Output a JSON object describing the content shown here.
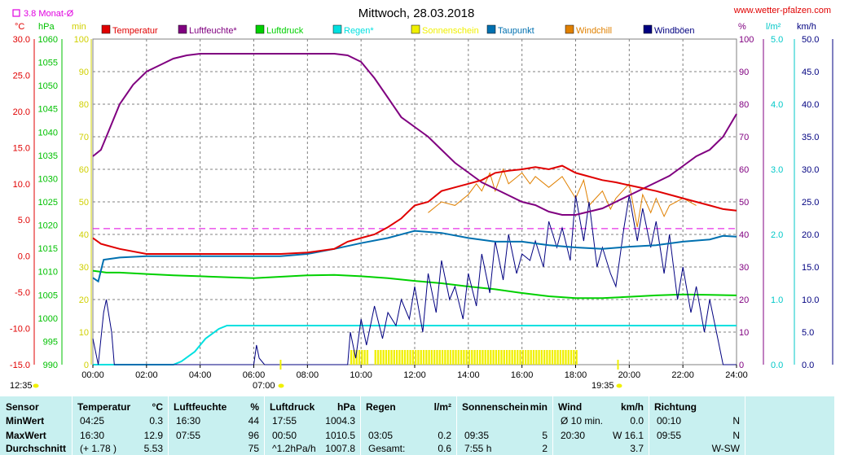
{
  "header": {
    "title": "Mittwoch, 28.03.2018",
    "site": "www.wetter-pfalzen.com",
    "avg_label": "3.8 Monat-Ø"
  },
  "axes": {
    "left_units": [
      "°C",
      "hPa",
      "min"
    ],
    "right_units": [
      "%",
      "l/m²",
      "km/h"
    ]
  },
  "legend": [
    {
      "label": "Temperatur",
      "color": "#e00000"
    },
    {
      "label": "Luftfeuchte*",
      "color": "#800080"
    },
    {
      "label": "Luftdruck",
      "color": "#00d000"
    },
    {
      "label": "Regen*",
      "color": "#00e0e0"
    },
    {
      "label": "Sonnenschein",
      "color": "#f0f000"
    },
    {
      "label": "Taupunkt",
      "color": "#0070b0"
    },
    {
      "label": "Windchill",
      "color": "#e08000"
    },
    {
      "label": "Windböen",
      "color": "#000080"
    }
  ],
  "sun": {
    "rise": "07:00",
    "set": "19:35",
    "left_time": "12:35"
  },
  "chart_data": {
    "type": "line",
    "x_ticks": [
      "00:00",
      "02:00",
      "04:00",
      "06:00",
      "08:00",
      "10:00",
      "12:00",
      "14:00",
      "16:00",
      "18:00",
      "20:00",
      "22:00",
      "24:00"
    ],
    "y_temp_ticks": [
      "30.0",
      "25.0",
      "20.0",
      "15.0",
      "10.0",
      "5.0",
      "0.0",
      "-5.0",
      "-10.0",
      "-15.0"
    ],
    "y_hpa_ticks": [
      "1060",
      "1055",
      "1050",
      "1045",
      "1040",
      "1035",
      "1030",
      "1025",
      "1020",
      "1015",
      "1010",
      "1005",
      "1000",
      "995",
      "990"
    ],
    "y_min_ticks": [
      "100",
      "90",
      "80",
      "70",
      "60",
      "50",
      "40",
      "30",
      "20",
      "10",
      "0"
    ],
    "y_pct_ticks": [
      "100",
      "90",
      "80",
      "70",
      "60",
      "50",
      "40",
      "30",
      "20",
      "10",
      "0"
    ],
    "y_rain_ticks": [
      "5.0",
      "4.0",
      "3.0",
      "2.0",
      "1.0",
      "0.0"
    ],
    "y_wind_ticks": [
      "50.0",
      "45.0",
      "40.0",
      "35.0",
      "30.0",
      "25.0",
      "20.0",
      "15.0",
      "10.0",
      "5.0",
      "0.0"
    ],
    "monthly_avg_temp": 3.8,
    "series": [
      {
        "name": "Temperatur",
        "unit": "°C",
        "x": [
          0,
          0.3,
          1,
          2,
          3,
          4,
          5,
          6,
          7,
          8,
          9,
          9.5,
          10,
          10.5,
          11,
          11.5,
          12,
          12.5,
          13,
          13.5,
          14,
          14.5,
          15,
          15.5,
          16,
          16.5,
          17,
          17.5,
          18,
          18.5,
          19,
          19.5,
          20,
          20.5,
          21,
          21.5,
          22,
          22.5,
          23,
          23.5,
          24
        ],
        "y": [
          2.5,
          1.7,
          1.0,
          0.3,
          0.3,
          0.3,
          0.3,
          0.3,
          0.3,
          0.5,
          1.0,
          2.0,
          2.5,
          3.0,
          4.0,
          5.2,
          7.0,
          7.5,
          9.0,
          9.5,
          10.0,
          10.5,
          11.5,
          11.8,
          12.0,
          12.3,
          12.0,
          12.5,
          11.5,
          11.0,
          10.5,
          10.2,
          9.8,
          9.4,
          9.0,
          8.5,
          8.0,
          7.5,
          7.0,
          6.5,
          6.3
        ]
      },
      {
        "name": "Luftfeuchte*",
        "unit": "%",
        "x": [
          0,
          0.3,
          0.6,
          1,
          1.5,
          2,
          2.5,
          3,
          3.5,
          4,
          4.5,
          5,
          6,
          7,
          8,
          9,
          9.5,
          10,
          10.5,
          11,
          11.5,
          12,
          12.5,
          13,
          13.5,
          14,
          14.5,
          15,
          15.5,
          16,
          16.5,
          17,
          17.5,
          18,
          18.5,
          19,
          19.5,
          20,
          20.5,
          21,
          21.5,
          22,
          22.5,
          23,
          23.5,
          24
        ],
        "y": [
          64,
          66,
          72,
          80,
          86,
          90,
          92,
          94,
          95,
          95.5,
          95.5,
          95.5,
          95.5,
          95.5,
          95.5,
          95.5,
          95,
          93,
          88,
          82,
          76,
          73,
          70,
          66,
          62,
          59,
          56,
          54,
          52,
          50,
          49,
          47,
          46,
          46,
          47,
          48,
          50,
          52,
          54,
          56,
          58,
          61,
          64,
          66,
          70,
          77
        ]
      },
      {
        "name": "Luftdruck",
        "unit": "hPa",
        "x": [
          0,
          0.5,
          1,
          2,
          3,
          4,
          5,
          6,
          7,
          8,
          9,
          10,
          11,
          12,
          13,
          14,
          15,
          16,
          17,
          18,
          18.5,
          19,
          20,
          21,
          22,
          23,
          24
        ],
        "y": [
          1010.2,
          1009.8,
          1009.8,
          1009.5,
          1009.2,
          1009.0,
          1008.8,
          1008.6,
          1008.9,
          1009.2,
          1009.3,
          1009.0,
          1008.6,
          1008.0,
          1007.5,
          1006.8,
          1006.2,
          1005.4,
          1004.7,
          1004.3,
          1004.3,
          1004.3,
          1004.6,
          1004.9,
          1005.1,
          1005.0,
          1004.9
        ]
      },
      {
        "name": "Regen*",
        "unit": "l/m²",
        "x": [
          0,
          2,
          3,
          3.3,
          3.8,
          4.2,
          4.7,
          5,
          6,
          8,
          10,
          12,
          14,
          16,
          18,
          20,
          22,
          24
        ],
        "y": [
          0,
          0,
          0,
          0.05,
          0.2,
          0.4,
          0.55,
          0.6,
          0.6,
          0.6,
          0.6,
          0.6,
          0.6,
          0.6,
          0.6,
          0.6,
          0.6,
          0.6
        ]
      },
      {
        "name": "Taupunkt",
        "unit": "°C",
        "x": [
          0,
          0.2,
          0.4,
          1,
          2,
          3,
          4,
          5,
          6,
          7,
          8,
          9,
          10,
          11,
          12,
          13,
          14,
          15,
          16,
          17,
          18,
          19,
          20,
          21,
          22,
          23,
          23.5,
          24
        ],
        "y": [
          -3,
          -3.5,
          -0.5,
          -0.2,
          0,
          0,
          0,
          0,
          0,
          0,
          0.3,
          1,
          1.8,
          2.5,
          3.5,
          3.2,
          2.5,
          2,
          2,
          1.5,
          1.2,
          1,
          1.3,
          1.5,
          2,
          2.3,
          2.8,
          2.7
        ]
      },
      {
        "name": "Windchill",
        "unit": "°C",
        "x": [
          12.5,
          13,
          13.5,
          14,
          14.3,
          14.5,
          14.8,
          15,
          15.3,
          15.5,
          16,
          16.3,
          16.5,
          17,
          17.5,
          18,
          18.3,
          18.5,
          19,
          19.3,
          19.5,
          20,
          20.3,
          20.5,
          20.8,
          21,
          21.3,
          21.5,
          22,
          22.5
        ],
        "y": [
          6,
          7.5,
          7,
          8.5,
          10,
          9,
          11.5,
          9,
          12,
          10,
          11.5,
          10,
          11,
          9.5,
          11,
          8,
          10.5,
          7,
          9,
          6.5,
          8,
          10,
          4,
          8.5,
          6,
          8,
          5.5,
          7,
          8,
          7
        ]
      },
      {
        "name": "Windböen",
        "unit": "km/h",
        "x": [
          0,
          0.2,
          0.4,
          0.5,
          0.7,
          0.8,
          1,
          1.2,
          1.5,
          2,
          2.5,
          3,
          4,
          5,
          6,
          6.1,
          6.2,
          6.4,
          7,
          8,
          9,
          9.5,
          9.6,
          9.8,
          10,
          10.2,
          10.5,
          10.8,
          11,
          11.3,
          11.5,
          11.8,
          12,
          12.3,
          12.5,
          12.8,
          13,
          13.3,
          13.5,
          13.8,
          14,
          14.3,
          14.5,
          14.8,
          15,
          15.3,
          15.5,
          15.8,
          16,
          16.3,
          16.5,
          16.8,
          17,
          17.3,
          17.5,
          17.8,
          18,
          18.3,
          18.5,
          18.8,
          19,
          19.3,
          19.5,
          19.8,
          20,
          20.3,
          20.5,
          20.8,
          21,
          21.3,
          21.5,
          21.8,
          22,
          22.3,
          22.5,
          22.8,
          23,
          23.3,
          23.5,
          24
        ],
        "y": [
          4,
          0,
          8,
          10,
          5,
          0,
          0,
          0,
          0,
          0,
          0,
          0,
          0,
          0,
          0,
          3,
          1,
          0,
          0,
          0,
          0,
          0,
          5,
          1,
          7,
          3,
          9,
          4,
          8,
          6,
          10,
          7,
          12,
          5,
          14,
          8,
          16,
          10,
          12,
          7,
          14,
          9,
          17,
          11,
          19,
          13,
          20,
          14,
          17,
          16,
          19,
          15,
          22,
          18,
          21,
          16,
          26,
          19,
          25,
          15,
          18,
          14,
          12,
          21,
          26,
          19,
          24,
          18,
          22,
          14,
          20,
          10,
          15,
          8,
          12,
          5,
          10,
          4,
          0,
          0
        ]
      }
    ],
    "sunshine_minutes": [
      {
        "from": 9.6,
        "to": 10.2
      },
      {
        "from": 10.5,
        "to": 18.1
      }
    ]
  },
  "stats": {
    "columns": [
      {
        "key": "sensor",
        "head": "Sensor",
        "unit": "",
        "rows": [
          "MinWert",
          "MaxWert",
          "Durchschnitt"
        ]
      },
      {
        "key": "temp",
        "head": "Temperatur",
        "unit": "°C",
        "rows": [
          [
            "04:25",
            "0.3"
          ],
          [
            "16:30",
            "12.9"
          ],
          [
            "(+ 1.78 )",
            "5.53"
          ]
        ]
      },
      {
        "key": "hum",
        "head": "Luftfeuchte",
        "unit": "%",
        "rows": [
          [
            "16:30",
            "44"
          ],
          [
            "07:55",
            "96"
          ],
          [
            "",
            "75"
          ]
        ]
      },
      {
        "key": "press",
        "head": "Luftdruck",
        "unit": "hPa",
        "rows": [
          [
            "17:55",
            "1004.3"
          ],
          [
            "00:50",
            "1010.5"
          ],
          [
            "^1.2hPa/h",
            "1007.8"
          ]
        ]
      },
      {
        "key": "rain",
        "head": "Regen",
        "unit": "l/m²",
        "rows": [
          [
            "",
            ""
          ],
          [
            "03:05",
            "0.2"
          ],
          [
            "Gesamt:",
            "0.6"
          ]
        ]
      },
      {
        "key": "sun",
        "head": "Sonnenschein",
        "unit": "min",
        "rows": [
          [
            "",
            ""
          ],
          [
            "09:35",
            "5"
          ],
          [
            "7:55 h",
            "2"
          ]
        ]
      },
      {
        "key": "wind",
        "head": "Wind",
        "unit": "km/h",
        "rows": [
          [
            "Ø 10 min.",
            "0.0"
          ],
          [
            "20:30",
            "W 16.1"
          ],
          [
            "",
            "3.7"
          ]
        ]
      },
      {
        "key": "dir",
        "head": "Richtung",
        "unit": "",
        "rows": [
          [
            "00:10",
            "N"
          ],
          [
            "09:55",
            "N"
          ],
          [
            "",
            "W-SW"
          ]
        ]
      }
    ]
  }
}
